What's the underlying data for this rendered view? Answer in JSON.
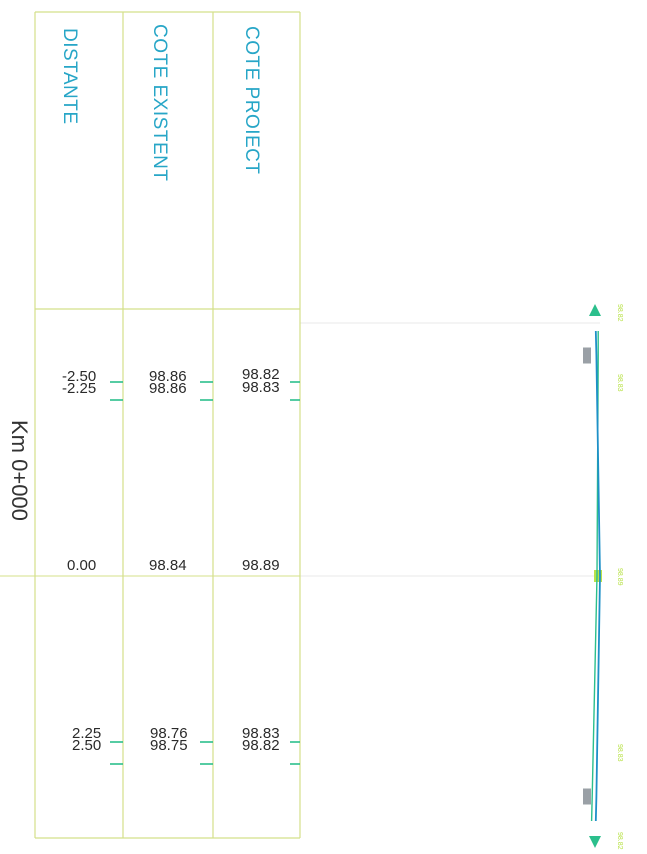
{
  "colors": {
    "grid": "#d4e08a",
    "header_text": "#27a6c7",
    "value_text": "#2a2a2a",
    "tick": "#2bbf8c",
    "profile_line": "#1e90c8",
    "marker": "#9aa0a6",
    "marker_green": "#b9e24a",
    "side_text": "#333333",
    "guide": "#e8e8e8"
  },
  "side_label": "Km 0+000",
  "table": {
    "columns": [
      {
        "id": "distante",
        "label": "DISTANTE"
      },
      {
        "id": "cote_existent",
        "label": "COTE EXISTENT"
      },
      {
        "id": "cote_proiect",
        "label": "COTE PROIECT"
      }
    ],
    "groups": [
      {
        "id": "left",
        "rows": [
          {
            "distante": "-2.50",
            "cote_existent": "98.86",
            "cote_proiect": "98.82"
          },
          {
            "distante": "-2.25",
            "cote_existent": "98.86",
            "cote_proiect": "98.83"
          }
        ]
      },
      {
        "id": "axis",
        "rows": [
          {
            "distante": "0.00",
            "cote_existent": "98.84",
            "cote_proiect": "98.89"
          }
        ]
      },
      {
        "id": "right",
        "rows": [
          {
            "distante": "2.25",
            "cote_existent": "98.76",
            "cote_proiect": "98.83"
          },
          {
            "distante": "2.50",
            "cote_existent": "98.75",
            "cote_proiect": "98.82"
          }
        ]
      }
    ]
  },
  "profile": {
    "points": [
      {
        "offset": -2.5,
        "existing": 98.86,
        "design": 98.82
      },
      {
        "offset": -2.25,
        "existing": 98.86,
        "design": 98.83
      },
      {
        "offset": 0.0,
        "existing": 98.84,
        "design": 98.89
      },
      {
        "offset": 2.25,
        "existing": 98.76,
        "design": 98.83
      },
      {
        "offset": 2.5,
        "existing": 98.75,
        "design": 98.82
      }
    ],
    "tiny_labels": [
      "98.82",
      "98.83",
      "98.89",
      "98.83",
      "98.82"
    ]
  }
}
